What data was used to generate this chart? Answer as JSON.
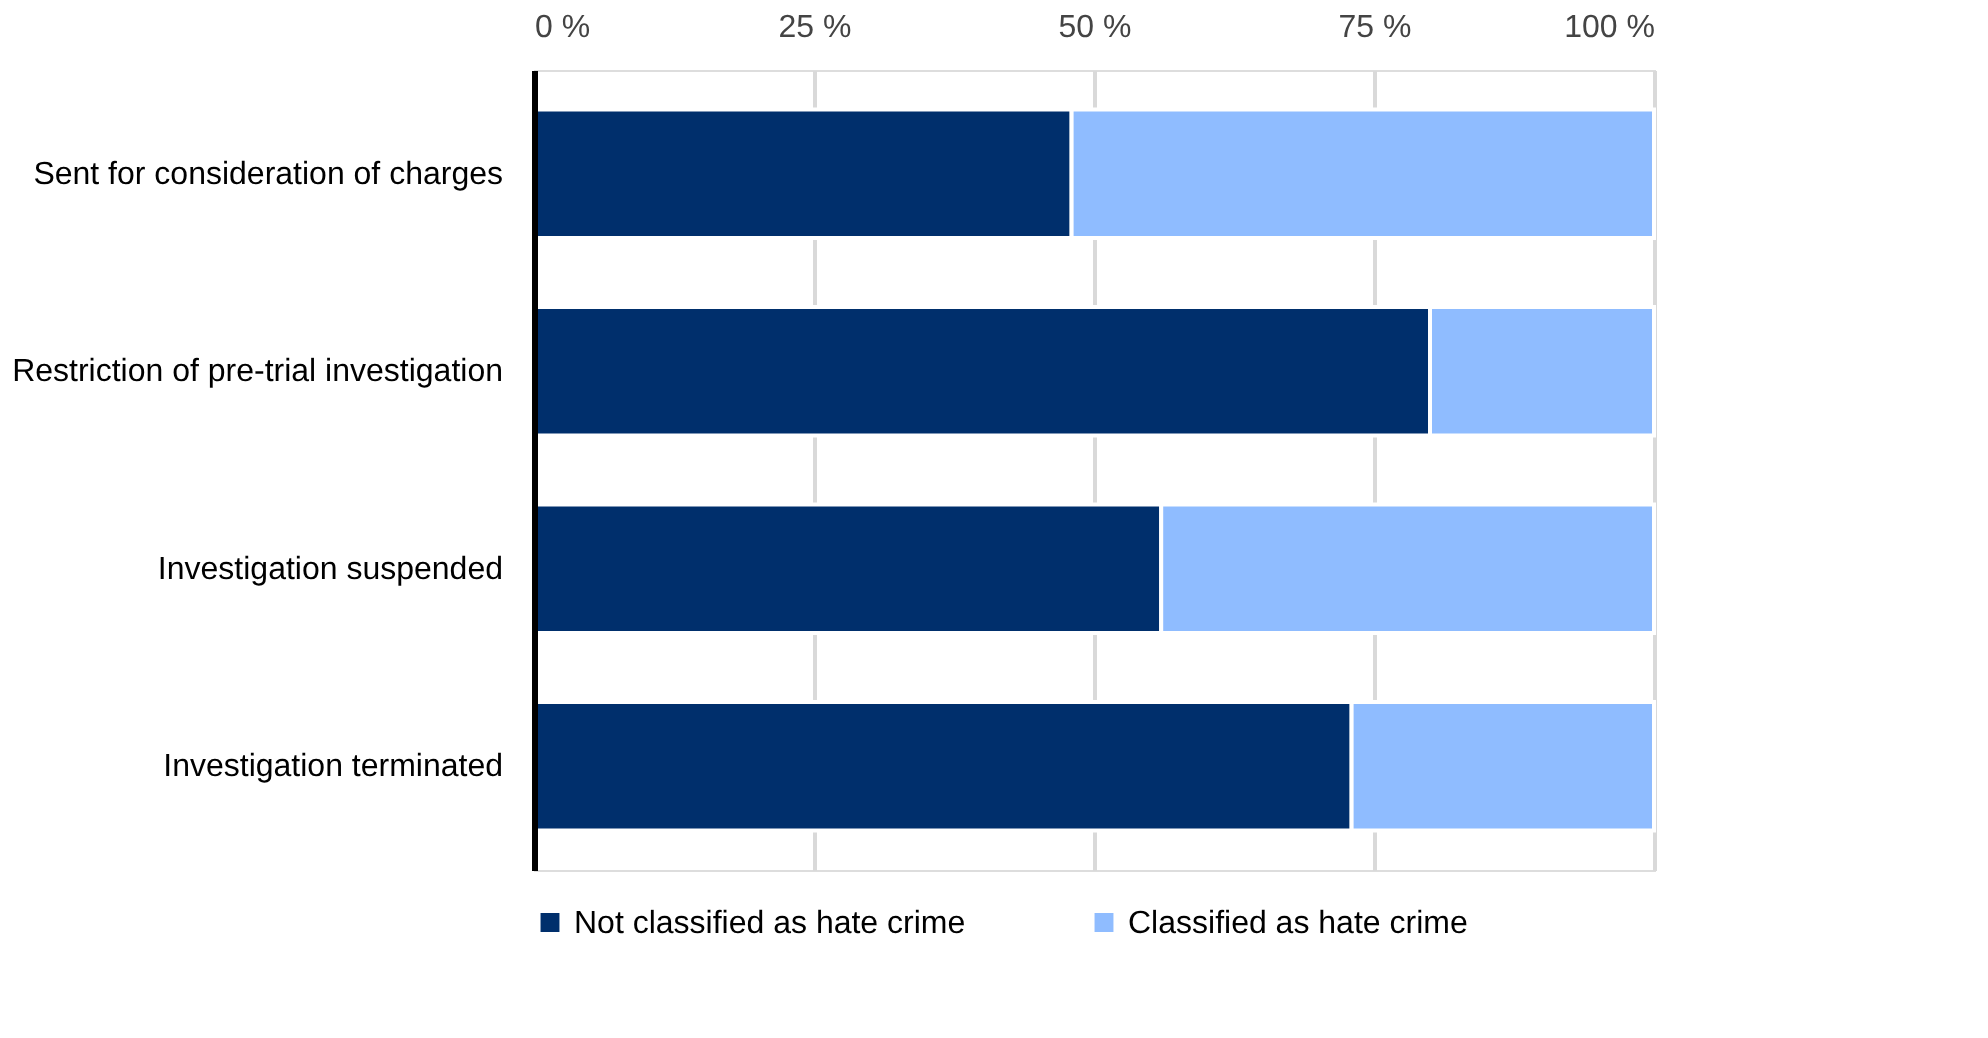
{
  "chart_data": {
    "type": "bar",
    "orientation": "horizontal",
    "stacked": true,
    "categories": [
      "Sent for consideration of charges",
      "Restriction of pre-trial investigation",
      "Investigation suspended",
      "Investigation terminated"
    ],
    "series": [
      {
        "name": "Not classified as hate crime",
        "color": "#002f6c",
        "values": [
          48,
          80,
          56,
          73
        ]
      },
      {
        "name": "Classified as hate crime",
        "color": "#8fbcff",
        "values": [
          52,
          20,
          44,
          27
        ]
      }
    ],
    "xlim": [
      0,
      100
    ],
    "xticks": [
      {
        "value": 0,
        "label": "0 %"
      },
      {
        "value": 25,
        "label": "25 %"
      },
      {
        "value": 50,
        "label": "50 %"
      },
      {
        "value": 75,
        "label": "75 %"
      },
      {
        "value": 100,
        "label": "100 %"
      }
    ],
    "grid": "x",
    "legend": "bottom"
  }
}
